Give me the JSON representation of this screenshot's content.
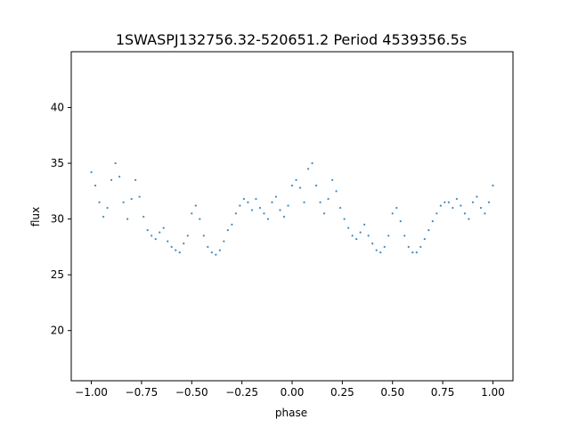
{
  "chart_data": {
    "type": "scatter",
    "title": "1SWASPJ132756.32-520651.2 Period 4539356.5s",
    "xlabel": "phase",
    "ylabel": "flux",
    "xlim": [
      -1.1,
      1.1
    ],
    "ylim": [
      15.5,
      45.0
    ],
    "grid": false,
    "legend": "none",
    "x_ticks": [
      {
        "value": -1.0,
        "label": "−1.00"
      },
      {
        "value": -0.75,
        "label": "−0.75"
      },
      {
        "value": -0.5,
        "label": "−0.50"
      },
      {
        "value": -0.25,
        "label": "−0.25"
      },
      {
        "value": 0.0,
        "label": "0.00"
      },
      {
        "value": 0.25,
        "label": "0.25"
      },
      {
        "value": 0.5,
        "label": "0.50"
      },
      {
        "value": 0.75,
        "label": "0.75"
      },
      {
        "value": 1.0,
        "label": "1.00"
      }
    ],
    "y_ticks": [
      {
        "value": 20,
        "label": "20"
      },
      {
        "value": 25,
        "label": "25"
      },
      {
        "value": 30,
        "label": "30"
      },
      {
        "value": 35,
        "label": "35"
      },
      {
        "value": 40,
        "label": "40"
      }
    ],
    "series": [
      {
        "color": "#1f77b4",
        "points": [
          [
            -1.0,
            34.2
          ],
          [
            -0.98,
            33.0
          ],
          [
            -0.96,
            31.5
          ],
          [
            -0.94,
            30.2
          ],
          [
            -0.92,
            31.0
          ],
          [
            -0.9,
            33.5
          ],
          [
            -0.88,
            35.0
          ],
          [
            -0.86,
            33.8
          ],
          [
            -0.84,
            31.5
          ],
          [
            -0.82,
            30.0
          ],
          [
            -0.8,
            31.8
          ],
          [
            -0.78,
            33.5
          ],
          [
            -0.76,
            32.0
          ],
          [
            -0.74,
            30.2
          ],
          [
            -0.72,
            29.0
          ],
          [
            -0.7,
            28.5
          ],
          [
            -0.68,
            28.2
          ],
          [
            -0.66,
            28.8
          ],
          [
            -0.64,
            29.2
          ],
          [
            -0.62,
            28.0
          ],
          [
            -0.6,
            27.5
          ],
          [
            -0.58,
            27.2
          ],
          [
            -0.56,
            27.0
          ],
          [
            -0.54,
            27.8
          ],
          [
            -0.52,
            28.5
          ],
          [
            -0.5,
            30.5
          ],
          [
            -0.48,
            31.2
          ],
          [
            -0.46,
            30.0
          ],
          [
            -0.44,
            28.5
          ],
          [
            -0.42,
            27.5
          ],
          [
            -0.4,
            27.0
          ],
          [
            -0.38,
            26.8
          ],
          [
            -0.36,
            27.2
          ],
          [
            -0.34,
            28.0
          ],
          [
            -0.32,
            29.0
          ],
          [
            -0.3,
            29.5
          ],
          [
            -0.28,
            30.5
          ],
          [
            -0.26,
            31.2
          ],
          [
            -0.24,
            31.8
          ],
          [
            -0.22,
            31.5
          ],
          [
            -0.2,
            30.8
          ],
          [
            -0.18,
            31.8
          ],
          [
            -0.16,
            31.0
          ],
          [
            -0.14,
            30.5
          ],
          [
            -0.12,
            30.0
          ],
          [
            -0.1,
            31.5
          ],
          [
            -0.08,
            32.0
          ],
          [
            -0.06,
            30.8
          ],
          [
            -0.04,
            30.2
          ],
          [
            -0.02,
            31.2
          ],
          [
            0.0,
            33.0
          ],
          [
            0.02,
            33.5
          ],
          [
            0.04,
            32.8
          ],
          [
            0.06,
            31.5
          ],
          [
            0.08,
            34.5
          ],
          [
            0.1,
            35.0
          ],
          [
            0.12,
            33.0
          ],
          [
            0.14,
            31.5
          ],
          [
            0.16,
            30.5
          ],
          [
            0.18,
            31.8
          ],
          [
            0.2,
            33.5
          ],
          [
            0.22,
            32.5
          ],
          [
            0.24,
            31.0
          ],
          [
            0.26,
            30.0
          ],
          [
            0.28,
            29.2
          ],
          [
            0.3,
            28.5
          ],
          [
            0.32,
            28.2
          ],
          [
            0.34,
            28.8
          ],
          [
            0.36,
            29.5
          ],
          [
            0.38,
            28.5
          ],
          [
            0.4,
            27.8
          ],
          [
            0.42,
            27.2
          ],
          [
            0.44,
            27.0
          ],
          [
            0.46,
            27.5
          ],
          [
            0.48,
            28.5
          ],
          [
            0.5,
            30.5
          ],
          [
            0.52,
            31.0
          ],
          [
            0.54,
            29.8
          ],
          [
            0.56,
            28.5
          ],
          [
            0.58,
            27.5
          ],
          [
            0.6,
            27.0
          ],
          [
            0.62,
            27.0
          ],
          [
            0.64,
            27.5
          ],
          [
            0.66,
            28.2
          ],
          [
            0.68,
            29.0
          ],
          [
            0.7,
            29.8
          ],
          [
            0.72,
            30.5
          ],
          [
            0.74,
            31.2
          ],
          [
            0.76,
            31.5
          ],
          [
            0.78,
            31.5
          ],
          [
            0.8,
            31.0
          ],
          [
            0.82,
            31.8
          ],
          [
            0.84,
            31.2
          ],
          [
            0.86,
            30.5
          ],
          [
            0.88,
            30.0
          ],
          [
            0.9,
            31.5
          ],
          [
            0.92,
            32.0
          ],
          [
            0.94,
            31.0
          ],
          [
            0.96,
            30.5
          ],
          [
            0.98,
            31.5
          ],
          [
            1.0,
            33.0
          ]
        ]
      }
    ]
  }
}
